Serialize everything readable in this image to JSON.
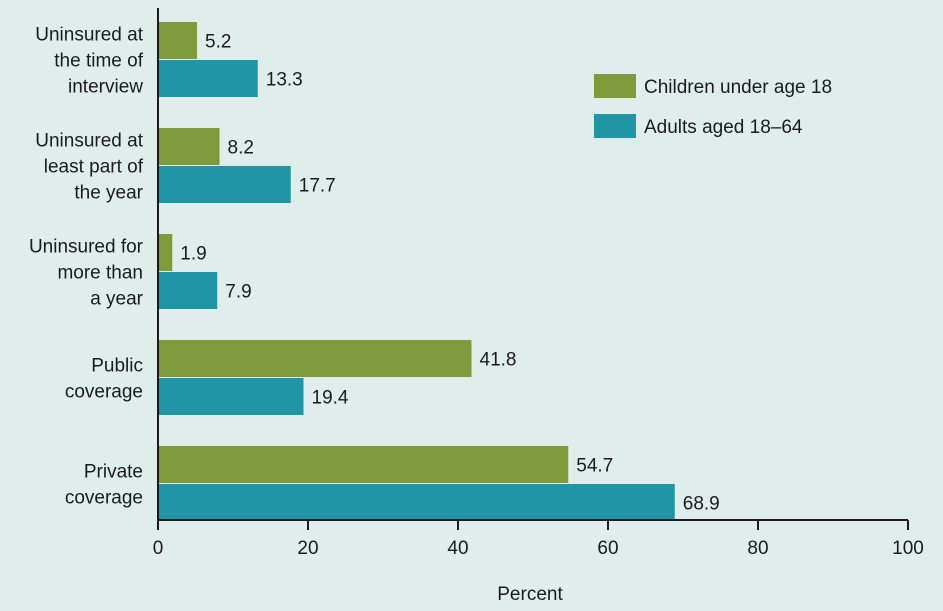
{
  "chart_data": {
    "type": "bar",
    "orientation": "horizontal",
    "categories": [
      [
        "Uninsured at",
        "the time of",
        "interview"
      ],
      [
        "Uninsured at",
        "least part of",
        "the year"
      ],
      [
        "Uninsured for",
        "more than",
        "a year"
      ],
      [
        "Public",
        "coverage"
      ],
      [
        "Private",
        "coverage"
      ]
    ],
    "series": [
      {
        "name": "Children under age 18",
        "color": "#7f9a3a",
        "values": [
          5.2,
          8.2,
          1.9,
          41.8,
          54.7
        ]
      },
      {
        "name": "Adults aged 18–64",
        "color": "#1f95a6",
        "values": [
          13.3,
          17.7,
          7.9,
          19.4,
          68.9
        ]
      }
    ],
    "value_labels": [
      [
        "5.2",
        "8.2",
        "1.9",
        "41.8",
        "54.7"
      ],
      [
        "13.3",
        "17.7",
        "7.9",
        "19.4",
        "68.9"
      ]
    ],
    "xlim": [
      0,
      100
    ],
    "xticks": [
      0,
      20,
      40,
      60,
      80,
      100
    ],
    "xlabel": "Percent",
    "ylabel": "",
    "title": "",
    "legend": "top-right",
    "grid": false
  }
}
